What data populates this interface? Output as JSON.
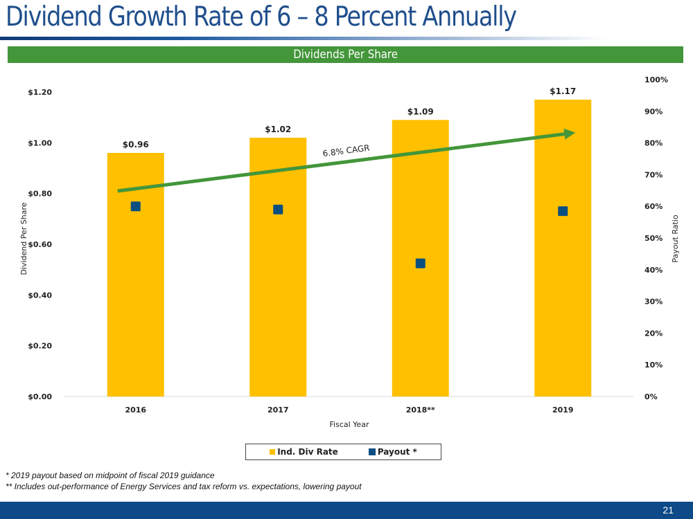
{
  "slide": {
    "title": "Dividend Growth Rate of 6 – 8 Percent Annually",
    "banner": "Dividends Per Share",
    "footnotes": [
      "* 2019 payout based on midpoint of fiscal 2019 guidance",
      "** Includes out-performance of Energy Services and tax reform vs. expectations, lowering payout"
    ],
    "page_number": "21"
  },
  "colors": {
    "bar": "#ffc000",
    "marker": "#0b4e80",
    "trend": "#43963a",
    "title": "#1f4e8c",
    "footer": "#0d4a87"
  },
  "chart_data": {
    "type": "bar",
    "title": "Dividends Per Share",
    "categories": [
      "2016",
      "2017",
      "2018**",
      "2019"
    ],
    "xlabel": "Fiscal Year",
    "ylabel": "Dividend Per Share",
    "y2label": "Payout Ratio",
    "ylim": [
      0,
      1.2
    ],
    "y2lim": [
      0,
      1.0
    ],
    "yticks": [
      "$0.00",
      "$0.20",
      "$0.40",
      "$0.60",
      "$0.80",
      "$1.00",
      "$1.20"
    ],
    "y2ticks": [
      "0%",
      "10%",
      "20%",
      "30%",
      "40%",
      "50%",
      "60%",
      "70%",
      "80%",
      "90%",
      "100%"
    ],
    "series": [
      {
        "name": "Ind. Div Rate",
        "type": "bar",
        "axis": "left",
        "values": [
          0.96,
          1.02,
          1.09,
          1.17
        ],
        "labels": [
          "$0.96",
          "$1.02",
          "$1.09",
          "$1.17"
        ]
      },
      {
        "name": "Payout *",
        "type": "scatter",
        "axis": "right",
        "values": [
          0.6,
          0.59,
          0.42,
          0.585
        ]
      }
    ],
    "annotation": {
      "text": "6.8% CAGR",
      "type": "trend-arrow",
      "from_value": 0.81,
      "to_value": 1.04
    },
    "legend": {
      "position": "bottom",
      "entries": [
        "Ind. Div Rate",
        "Payout *"
      ]
    },
    "grid": false
  }
}
